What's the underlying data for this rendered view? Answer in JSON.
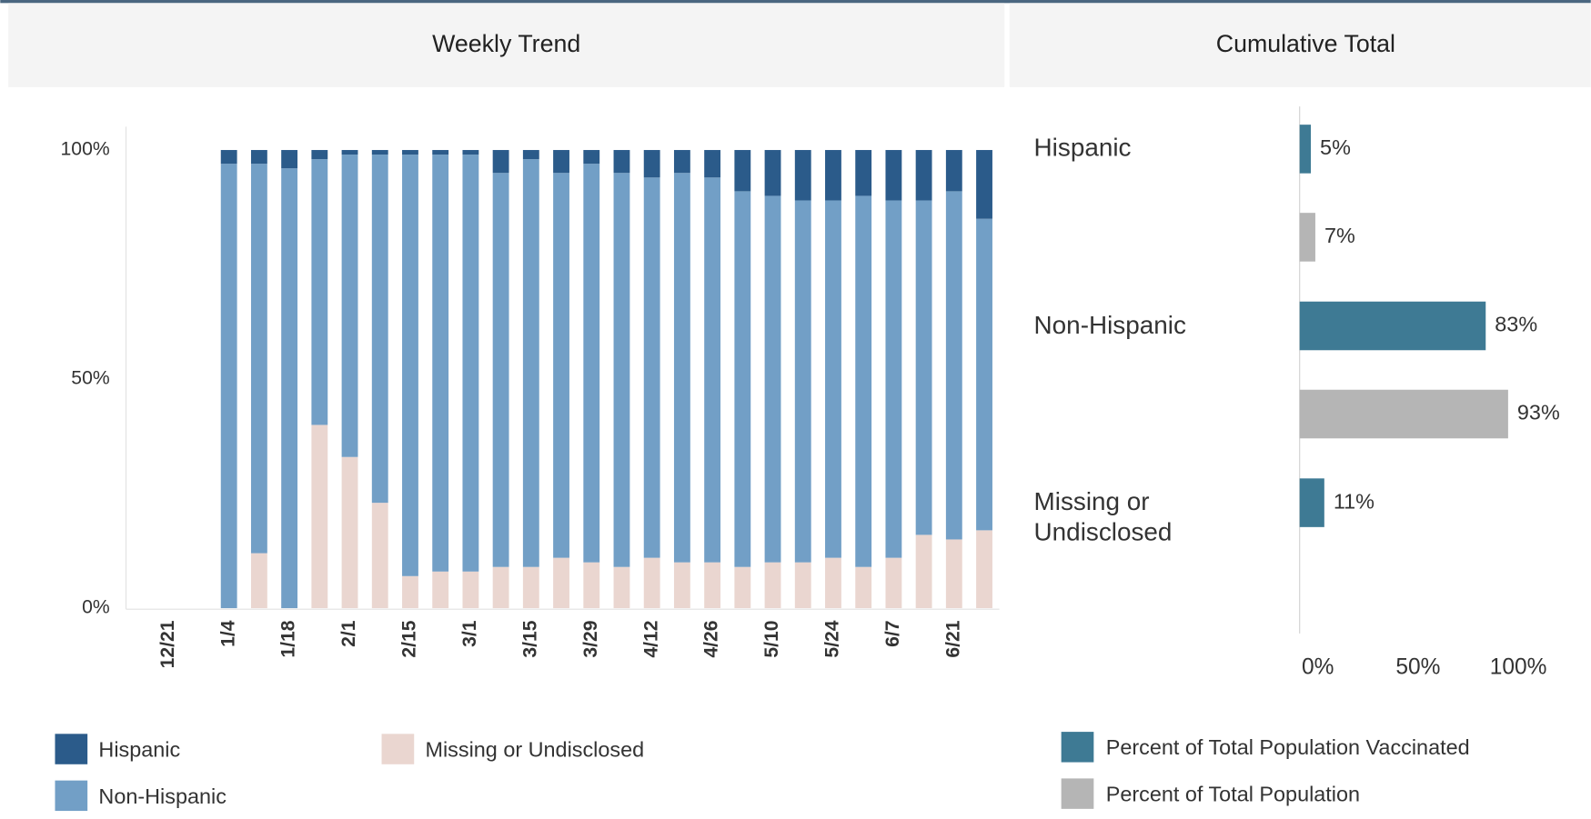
{
  "chart_data": [
    {
      "type": "stacked_bar",
      "title": "Weekly Trend",
      "categories": [
        "12/21",
        null,
        "1/4",
        null,
        "1/18",
        null,
        "2/1",
        null,
        "2/15",
        null,
        "3/1",
        null,
        "3/15",
        null,
        "3/29",
        null,
        "4/12",
        null,
        "4/26",
        null,
        "5/10",
        null,
        "5/24",
        null,
        "6/7",
        null,
        "6/21",
        null
      ],
      "series": [
        {
          "name": "Hispanic",
          "color": "#2b5b8a",
          "values": [
            null,
            null,
            3,
            3,
            4,
            2,
            1,
            1,
            1,
            1,
            1,
            5,
            2,
            5,
            3,
            5,
            6,
            5,
            6,
            9,
            10,
            11,
            11,
            10,
            11,
            11,
            9,
            15
          ]
        },
        {
          "name": "Non-Hispanic",
          "color": "#729fc6",
          "values": [
            null,
            null,
            97,
            85,
            96,
            58,
            66,
            76,
            92,
            91,
            91,
            86,
            89,
            84,
            87,
            86,
            83,
            85,
            84,
            82,
            80,
            79,
            78,
            81,
            78,
            73,
            76,
            68
          ]
        },
        {
          "name": "Missing or Undisclosed",
          "color": "#ead6d0",
          "values": [
            null,
            null,
            0,
            12,
            0,
            40,
            33,
            23,
            7,
            8,
            8,
            9,
            9,
            11,
            10,
            9,
            11,
            10,
            10,
            9,
            10,
            10,
            11,
            9,
            11,
            16,
            15,
            17
          ]
        }
      ],
      "ylim": [
        0,
        100
      ],
      "yticks": [
        {
          "value": 0,
          "label": "0%"
        },
        {
          "value": 50,
          "label": "50%"
        },
        {
          "value": 100,
          "label": "100%"
        }
      ],
      "grid": false
    },
    {
      "type": "hbar",
      "title": "Cumulative Total",
      "categories": [
        "Hispanic",
        "Non-Hispanic",
        "Missing or Undisclosed"
      ],
      "series": [
        {
          "name": "Percent of Total Population Vaccinated",
          "color": "#3e7a94",
          "values": [
            5,
            83,
            11
          ],
          "value_labels": [
            "5%",
            "83%",
            "11%"
          ]
        },
        {
          "name": "Percent of Total Population",
          "color": "#b5b5b5",
          "values": [
            7,
            93,
            null
          ],
          "value_labels": [
            "7%",
            "93%",
            null
          ]
        }
      ],
      "xlim": [
        0,
        100
      ],
      "xticks": [
        {
          "value": 0,
          "label": "0%"
        },
        {
          "value": 50,
          "label": "50%"
        },
        {
          "value": 100,
          "label": "100%"
        }
      ],
      "grid": false
    }
  ]
}
